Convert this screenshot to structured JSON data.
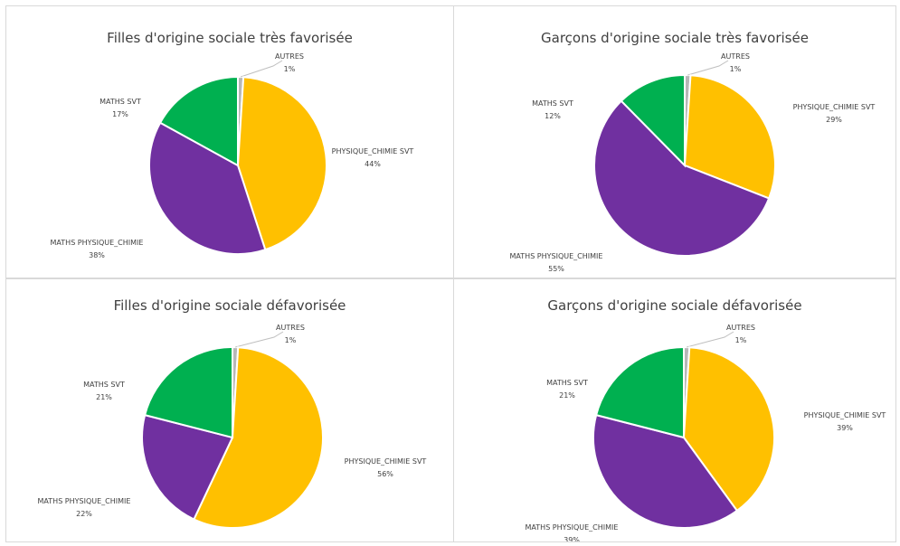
{
  "chart_data": [
    {
      "type": "pie",
      "title": "Filles d'origine sociale très favorisée",
      "slices": [
        {
          "label": "AUTRES",
          "value": 1,
          "value_label": "1%",
          "color": "#b7b7b7"
        },
        {
          "label": "PHYSIQUE_CHIMIE SVT",
          "value": 44,
          "value_label": "44%",
          "color": "#ffc000"
        },
        {
          "label": "MATHS PHYSIQUE_CHIMIE",
          "value": 38,
          "value_label": "38%",
          "color": "#7030a0"
        },
        {
          "label": "MATHS SVT",
          "value": 17,
          "value_label": "17%",
          "color": "#00b050"
        }
      ]
    },
    {
      "type": "pie",
      "title": "Garçons d'origine sociale très favorisée",
      "slices": [
        {
          "label": "AUTRES",
          "value": 1,
          "value_label": "1%",
          "color": "#b7b7b7"
        },
        {
          "label": "PHYSIQUE_CHIMIE SVT",
          "value": 29,
          "value_label": "29%",
          "color": "#ffc000"
        },
        {
          "label": "MATHS PHYSIQUE_CHIMIE",
          "value": 55,
          "value_label": "55%",
          "color": "#7030a0"
        },
        {
          "label": "MATHS SVT",
          "value": 12,
          "value_label": "12%",
          "color": "#00b050"
        }
      ]
    },
    {
      "type": "pie",
      "title": "Filles d'origine sociale défavorisée",
      "slices": [
        {
          "label": "AUTRES",
          "value": 1,
          "value_label": "1%",
          "color": "#b7b7b7"
        },
        {
          "label": "PHYSIQUE_CHIMIE SVT",
          "value": 56,
          "value_label": "56%",
          "color": "#ffc000"
        },
        {
          "label": "MATHS PHYSIQUE_CHIMIE",
          "value": 22,
          "value_label": "22%",
          "color": "#7030a0"
        },
        {
          "label": "MATHS SVT",
          "value": 21,
          "value_label": "21%",
          "color": "#00b050"
        }
      ]
    },
    {
      "type": "pie",
      "title": "Garçons d'origine sociale défavorisée",
      "slices": [
        {
          "label": "AUTRES",
          "value": 1,
          "value_label": "1%",
          "color": "#b7b7b7"
        },
        {
          "label": "PHYSIQUE_CHIMIE SVT",
          "value": 39,
          "value_label": "39%",
          "color": "#ffc000"
        },
        {
          "label": "MATHS PHYSIQUE_CHIMIE",
          "value": 39,
          "value_label": "39%",
          "color": "#7030a0"
        },
        {
          "label": "MATHS SVT",
          "value": 21,
          "value_label": "21%",
          "color": "#00b050"
        }
      ]
    }
  ]
}
